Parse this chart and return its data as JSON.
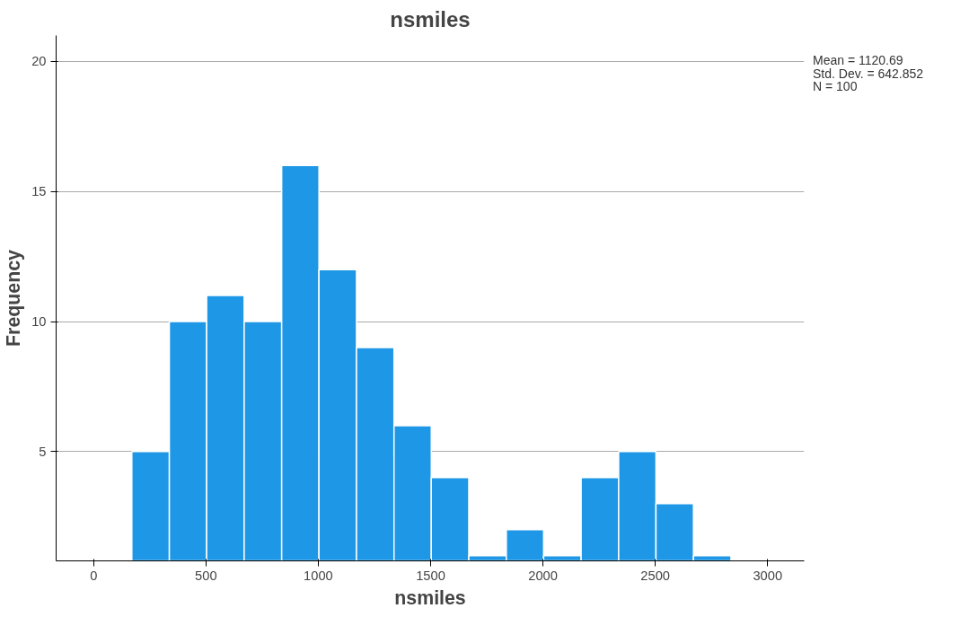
{
  "chart_data": {
    "type": "histogram",
    "title": "nsmiles",
    "xlabel": "nsmiles",
    "ylabel": "Frequency",
    "bins": [
      170,
      337,
      503,
      670,
      837,
      1003,
      1170,
      1337,
      1503,
      1670,
      1837,
      2003,
      2170,
      2337,
      2503,
      2670,
      2837
    ],
    "values": [
      5,
      10,
      11,
      10,
      16,
      12,
      9,
      6,
      4,
      1,
      2,
      1,
      4,
      5,
      3,
      1
    ],
    "color": "#1e98e6",
    "xlim": [
      -167,
      3163
    ],
    "xticks": [
      0,
      500,
      1000,
      1500,
      2000,
      2500,
      3000
    ],
    "ylim": [
      0.8,
      21
    ],
    "yticks": [
      5,
      10,
      15,
      20
    ],
    "grid": "y",
    "annotations": [
      "Mean = 1120.69",
      "Std. Dev. = 642.852",
      "N = 100"
    ]
  }
}
